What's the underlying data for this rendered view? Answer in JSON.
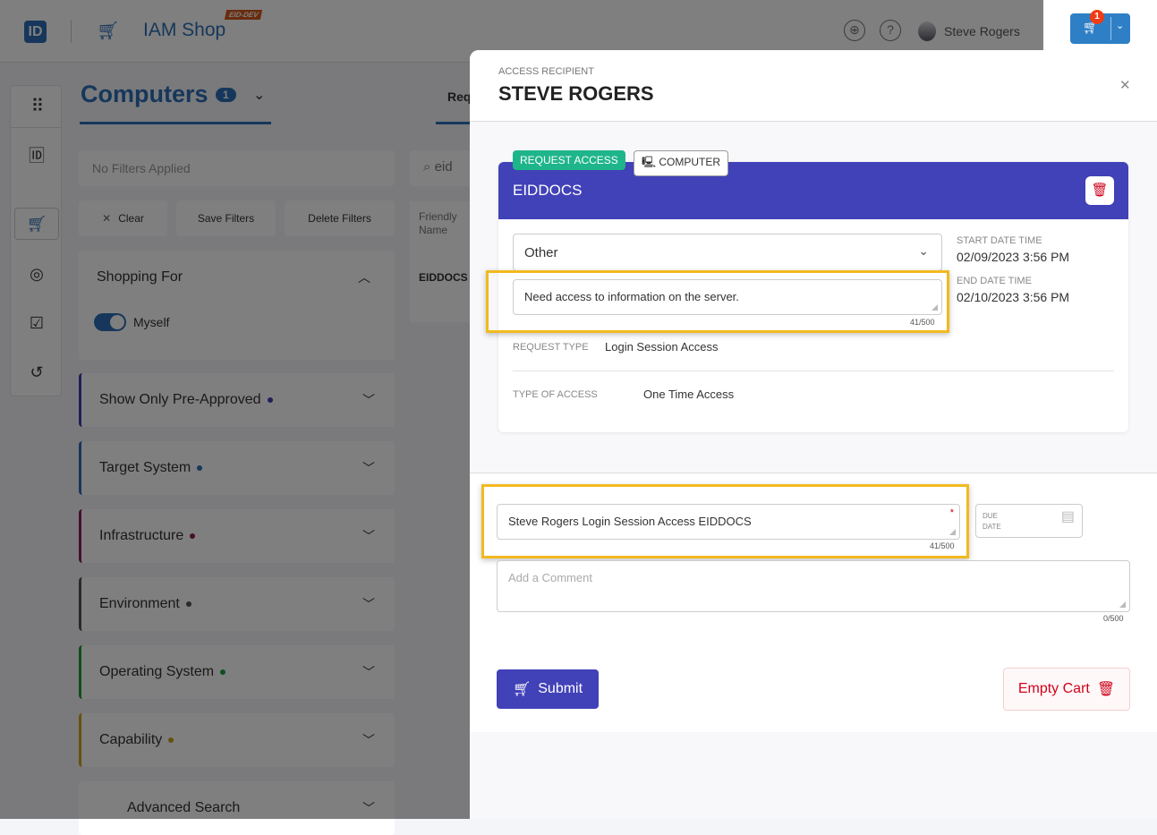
{
  "header": {
    "logo": "ID",
    "app_name": "IAM Shop",
    "env_badge": "EID-DEV",
    "user_name": "Steve Rogers",
    "cart_count": "1",
    "globe_icon": "globe-icon",
    "help_icon": "?"
  },
  "page": {
    "title": "Computers",
    "count": "1",
    "tab_partial": "Req",
    "search_partial": "eid",
    "column_header": "Friendly Name",
    "row_value": "EIDDOCS"
  },
  "filters": {
    "summary": "No Filters Applied",
    "clear": "Clear",
    "save": "Save Filters",
    "delete": "Delete Filters",
    "shopping_for": "Shopping For",
    "myself": "Myself",
    "myself_on": true,
    "panels": [
      {
        "label": "Show Only Pre-Approved",
        "color": "#3f3fb5"
      },
      {
        "label": "Target System",
        "color": "#2d6fb7"
      },
      {
        "label": "Infrastructure",
        "color": "#8e1c5e"
      },
      {
        "label": "Environment",
        "color": "#555555"
      },
      {
        "label": "Operating System",
        "color": "#1f9d3a"
      },
      {
        "label": "Capability",
        "color": "#c9a21a"
      },
      {
        "label": "Advanced Search",
        "color": ""
      }
    ]
  },
  "drawer": {
    "recipient_label": "ACCESS RECIPIENT",
    "recipient": "STEVE ROGERS",
    "item": {
      "tag_request": "REQUEST ACCESS",
      "tag_type": "COMPUTER",
      "name": "EIDDOCS",
      "reason": "Other",
      "justification": "Need access to information on the server.",
      "justification_count": "41/500",
      "start_label": "START DATE TIME",
      "start": "02/09/2023 3:56 PM",
      "end_label": "END DATE TIME",
      "end": "02/10/2023 3:56 PM",
      "request_type_label": "REQUEST TYPE",
      "request_type": "Login Session Access",
      "access_type_label": "TYPE OF ACCESS",
      "access_type": "One Time Access"
    },
    "business_request": "Steve Rogers Login Session Access EIDDOCS",
    "business_request_count": "41/500",
    "due_date_label": "DUE DATE",
    "comment_placeholder": "Add a Comment",
    "comment_count": "0/500",
    "submit": "Submit",
    "empty_cart": "Empty Cart"
  },
  "colors": {
    "primary": "#2d6fb7",
    "card_header": "#4141b8",
    "request_tag": "#1fb58a",
    "highlight": "#f2b91f",
    "danger": "#d0021b"
  }
}
